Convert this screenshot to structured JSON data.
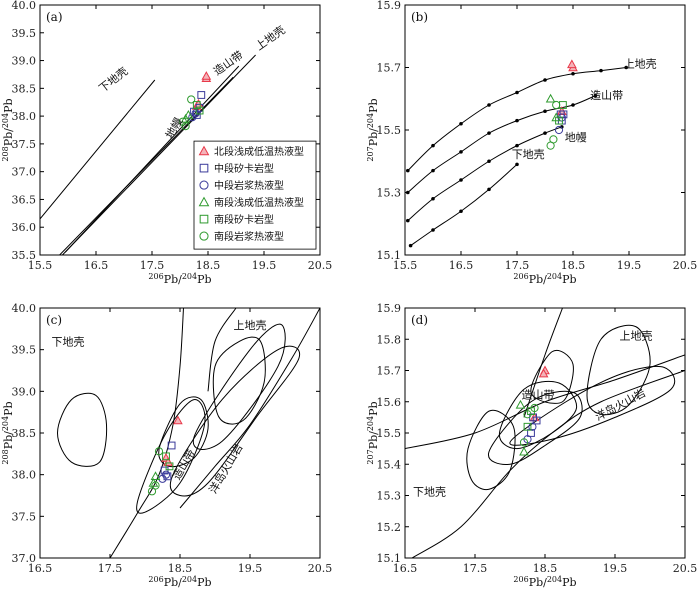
{
  "colors": {
    "north_low_temp": "#e8394a",
    "skarn": "#3a3a9a",
    "magmatic": "#3a3a9a",
    "south_low_temp": "#2e9a2e",
    "south_skarn": "#2e9a2e",
    "south_magmatic": "#2e9a2e",
    "curves": "#000000"
  },
  "chart_data": [
    {
      "panel": "(a)",
      "type": "line",
      "xlabel": "206Pb/204Pb",
      "ylabel": "208Pb/204Pb",
      "xlim": [
        15.5,
        20.5
      ],
      "ylim": [
        35.5,
        40.0
      ],
      "xticks": [
        "15.5",
        "16.5",
        "17.5",
        "18.5",
        "19.5",
        "20.5"
      ],
      "yticks": [
        "35.5",
        "36.0",
        "36.5",
        "37.0",
        "37.5",
        "38.0",
        "38.5",
        "39.0",
        "39.5",
        "40.0"
      ],
      "curves": [
        {
          "name": "下地壳",
          "points": [
            [
              15.5,
              36.15
            ],
            [
              17.55,
              38.65
            ]
          ]
        },
        {
          "name": "造山带",
          "points": [
            [
              15.95,
              35.55
            ],
            [
              19.05,
              38.9
            ]
          ]
        },
        {
          "name": "上地壳",
          "points": [
            [
              15.9,
              35.5
            ],
            [
              19.35,
              39.1
            ]
          ]
        },
        {
          "name": "地幔",
          "points": [
            [
              15.85,
              35.5
            ],
            [
              18.95,
              38.7
            ]
          ]
        }
      ],
      "curve_labels": [
        {
          "text": "下地壳",
          "x": 16.85,
          "y": 38.6,
          "rot": -38
        },
        {
          "text": "造山带",
          "x": 18.9,
          "y": 38.9,
          "rot": -35
        },
        {
          "text": "上地壳",
          "x": 19.65,
          "y": 39.35,
          "rot": -35
        },
        {
          "text": "地幔",
          "x": 17.95,
          "y": 37.75,
          "rot": -60
        }
      ],
      "legend": {
        "placement": "lower-right",
        "entries": [
          {
            "label": "北段浅成低温热液型",
            "marker": "triangle",
            "color": "#e8394a"
          },
          {
            "label": "中段矽卡岩型",
            "marker": "square",
            "color": "#3a3a9a"
          },
          {
            "label": "中段岩浆热液型",
            "marker": "circle",
            "color": "#3a3a9a"
          },
          {
            "label": "南段浅成低温热液型",
            "marker": "triangle",
            "color": "#2e9a2e"
          },
          {
            "label": "南段矽卡岩型",
            "marker": "square",
            "color": "#2e9a2e"
          },
          {
            "label": "南段岩浆热液型",
            "marker": "circle",
            "color": "#2e9a2e"
          }
        ]
      },
      "points": [
        {
          "x": 18.47,
          "y": 38.68,
          "g": 0
        },
        {
          "x": 18.47,
          "y": 38.72,
          "g": 0
        },
        {
          "x": 18.3,
          "y": 38.18,
          "g": 0
        },
        {
          "x": 18.33,
          "y": 38.22,
          "g": 0
        },
        {
          "x": 18.38,
          "y": 38.38,
          "g": 1
        },
        {
          "x": 18.25,
          "y": 38.08,
          "g": 1
        },
        {
          "x": 18.3,
          "y": 38.02,
          "g": 1
        },
        {
          "x": 18.35,
          "y": 38.15,
          "g": 1
        },
        {
          "x": 18.22,
          "y": 37.98,
          "g": 2
        },
        {
          "x": 18.28,
          "y": 38.05,
          "g": 2
        },
        {
          "x": 18.15,
          "y": 38.02,
          "g": 3
        },
        {
          "x": 18.1,
          "y": 37.95,
          "g": 3
        },
        {
          "x": 18.3,
          "y": 38.2,
          "g": 4
        },
        {
          "x": 18.35,
          "y": 38.1,
          "g": 4
        },
        {
          "x": 18.1,
          "y": 37.82,
          "g": 5
        },
        {
          "x": 18.2,
          "y": 38.3,
          "g": 5
        },
        {
          "x": 18.05,
          "y": 37.9,
          "g": 5
        }
      ]
    },
    {
      "panel": "(b)",
      "type": "line",
      "xlabel": "206Pb/204Pb",
      "ylabel": "207Pb/204Pb",
      "xlim": [
        15.5,
        20.5
      ],
      "ylim": [
        15.1,
        15.9
      ],
      "xticks": [
        "15.5",
        "16.5",
        "17.5",
        "18.5",
        "19.5",
        "20.5"
      ],
      "yticks": [
        "15.1",
        "15.3",
        "15.5",
        "15.7",
        "15.9"
      ],
      "curves": [
        {
          "name": "上地壳",
          "points": [
            [
              15.55,
              15.37
            ],
            [
              16.0,
              15.45
            ],
            [
              16.5,
              15.52
            ],
            [
              17.0,
              15.58
            ],
            [
              17.5,
              15.62
            ],
            [
              18.0,
              15.66
            ],
            [
              18.5,
              15.68
            ],
            [
              19.0,
              15.69
            ],
            [
              19.45,
              15.7
            ]
          ]
        },
        {
          "name": "造山带",
          "points": [
            [
              15.55,
              15.3
            ],
            [
              16.0,
              15.37
            ],
            [
              16.5,
              15.43
            ],
            [
              17.0,
              15.49
            ],
            [
              17.5,
              15.53
            ],
            [
              18.0,
              15.56
            ],
            [
              18.5,
              15.58
            ],
            [
              18.9,
              15.61
            ]
          ]
        },
        {
          "name": "地幔",
          "points": [
            [
              15.55,
              15.21
            ],
            [
              16.0,
              15.28
            ],
            [
              16.5,
              15.34
            ],
            [
              17.0,
              15.4
            ],
            [
              17.5,
              15.45
            ],
            [
              18.0,
              15.49
            ],
            [
              18.3,
              15.51
            ]
          ]
        },
        {
          "name": "下地壳",
          "points": [
            [
              15.6,
              15.13
            ],
            [
              16.0,
              15.18
            ],
            [
              16.5,
              15.24
            ],
            [
              17.0,
              15.31
            ],
            [
              17.5,
              15.39
            ]
          ]
        }
      ],
      "curve_labels": [
        {
          "text": "上地壳",
          "x": 19.7,
          "y": 15.7
        },
        {
          "text": "造山带",
          "x": 19.1,
          "y": 15.6
        },
        {
          "text": "地幔",
          "x": 18.55,
          "y": 15.465
        },
        {
          "text": "下地壳",
          "x": 17.7,
          "y": 15.41
        }
      ],
      "points": [
        {
          "x": 18.5,
          "y": 15.7,
          "g": 0
        },
        {
          "x": 18.48,
          "y": 15.71,
          "g": 0
        },
        {
          "x": 18.3,
          "y": 15.56,
          "g": 0
        },
        {
          "x": 18.33,
          "y": 15.55,
          "g": 1
        },
        {
          "x": 18.3,
          "y": 15.53,
          "g": 1
        },
        {
          "x": 18.28,
          "y": 15.55,
          "g": 1
        },
        {
          "x": 18.25,
          "y": 15.5,
          "g": 2
        },
        {
          "x": 18.3,
          "y": 15.54,
          "g": 2
        },
        {
          "x": 18.1,
          "y": 15.6,
          "g": 3
        },
        {
          "x": 18.2,
          "y": 15.54,
          "g": 3
        },
        {
          "x": 18.32,
          "y": 15.58,
          "g": 4
        },
        {
          "x": 18.25,
          "y": 15.53,
          "g": 4
        },
        {
          "x": 18.1,
          "y": 15.45,
          "g": 5
        },
        {
          "x": 18.15,
          "y": 15.47,
          "g": 5
        },
        {
          "x": 18.2,
          "y": 15.58,
          "g": 5
        }
      ]
    },
    {
      "panel": "(c)",
      "type": "scatter",
      "xlabel": "206Pb/204Pb",
      "ylabel": "208Pb/204Pb",
      "xlim": [
        16.5,
        20.5
      ],
      "ylim": [
        37.0,
        40.0
      ],
      "xticks": [
        "16.5",
        "17.5",
        "18.5",
        "19.5",
        "20.5"
      ],
      "yticks": [
        "37.0",
        "37.5",
        "38.0",
        "38.5",
        "39.0",
        "39.5",
        "40.0"
      ],
      "field_labels": [
        {
          "text": "下地壳",
          "x": 16.9,
          "y": 39.55
        },
        {
          "text": "上地壳",
          "x": 19.5,
          "y": 39.75
        },
        {
          "text": "造山带",
          "x": 18.6,
          "y": 38.1,
          "rot": -60
        },
        {
          "text": "洋岛火山岩",
          "x": 19.2,
          "y": 38.05,
          "rot": -60
        }
      ],
      "points": [
        {
          "x": 18.47,
          "y": 38.65,
          "g": 0
        },
        {
          "x": 18.3,
          "y": 38.2,
          "g": 0
        },
        {
          "x": 18.33,
          "y": 38.15,
          "g": 0
        },
        {
          "x": 18.38,
          "y": 38.35,
          "g": 1
        },
        {
          "x": 18.28,
          "y": 38.05,
          "g": 1
        },
        {
          "x": 18.32,
          "y": 37.98,
          "g": 1
        },
        {
          "x": 18.3,
          "y": 38.0,
          "g": 2
        },
        {
          "x": 18.25,
          "y": 37.95,
          "g": 2
        },
        {
          "x": 18.15,
          "y": 37.98,
          "g": 3
        },
        {
          "x": 18.12,
          "y": 37.9,
          "g": 3
        },
        {
          "x": 18.3,
          "y": 38.22,
          "g": 4
        },
        {
          "x": 18.35,
          "y": 38.1,
          "g": 4
        },
        {
          "x": 18.1,
          "y": 37.8,
          "g": 5
        },
        {
          "x": 18.2,
          "y": 38.28,
          "g": 5
        },
        {
          "x": 18.15,
          "y": 37.87,
          "g": 5
        }
      ]
    },
    {
      "panel": "(d)",
      "type": "scatter",
      "xlabel": "206Pb/204Pb",
      "ylabel": "207Pb/204Pb",
      "xlim": [
        16.5,
        20.5
      ],
      "ylim": [
        15.1,
        15.9
      ],
      "xticks": [
        "16.5",
        "17.5",
        "18.5",
        "19.5",
        "20.5"
      ],
      "yticks": [
        "15.1",
        "15.2",
        "15.3",
        "15.4",
        "15.5",
        "15.6",
        "15.7",
        "15.8",
        "15.9"
      ],
      "field_labels": [
        {
          "text": "上地壳",
          "x": 19.8,
          "y": 15.8
        },
        {
          "text": "造山带",
          "x": 18.4,
          "y": 15.61
        },
        {
          "text": "洋岛火山岩",
          "x": 19.6,
          "y": 15.58,
          "rot": -28
        },
        {
          "text": "下地壳",
          "x": 16.85,
          "y": 15.3
        }
      ],
      "points": [
        {
          "x": 18.5,
          "y": 15.7,
          "g": 0
        },
        {
          "x": 18.48,
          "y": 15.69,
          "g": 0
        },
        {
          "x": 18.35,
          "y": 15.55,
          "g": 0
        },
        {
          "x": 18.38,
          "y": 15.54,
          "g": 1
        },
        {
          "x": 18.33,
          "y": 15.55,
          "g": 1
        },
        {
          "x": 18.3,
          "y": 15.5,
          "g": 1
        },
        {
          "x": 18.25,
          "y": 15.48,
          "g": 2
        },
        {
          "x": 18.32,
          "y": 15.52,
          "g": 2
        },
        {
          "x": 18.15,
          "y": 15.59,
          "g": 3
        },
        {
          "x": 18.2,
          "y": 15.44,
          "g": 3
        },
        {
          "x": 18.3,
          "y": 15.57,
          "g": 4
        },
        {
          "x": 18.25,
          "y": 15.52,
          "g": 4
        },
        {
          "x": 18.2,
          "y": 15.47,
          "g": 5
        },
        {
          "x": 18.25,
          "y": 15.56,
          "g": 5
        },
        {
          "x": 18.35,
          "y": 15.58,
          "g": 5
        }
      ]
    }
  ]
}
